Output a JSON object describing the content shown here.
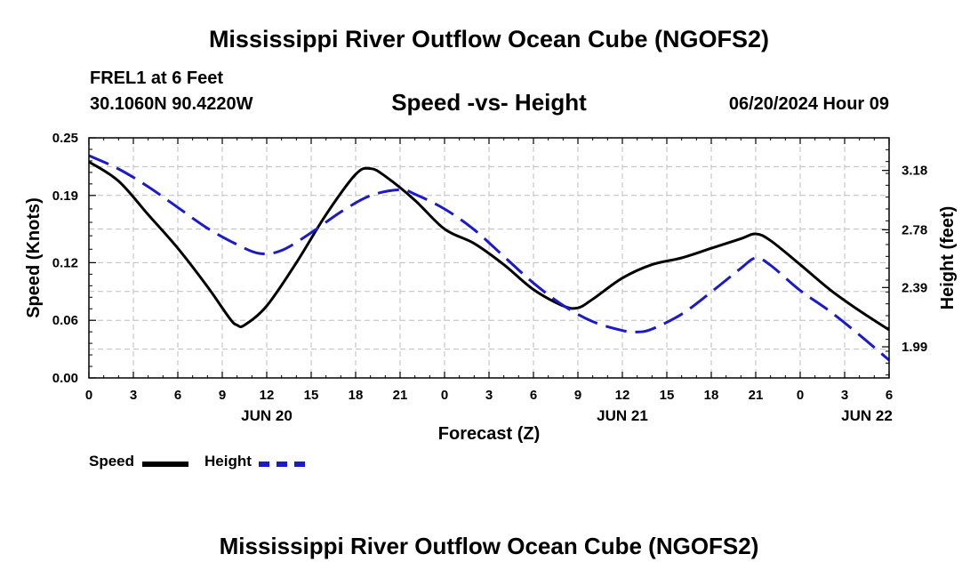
{
  "page": {
    "title_top": "Mississippi River Outflow Ocean Cube (NGOFS2)",
    "title_bottom": "Mississippi River Outflow Ocean Cube (NGOFS2)",
    "station": "FREL1 at 6 Feet",
    "coords": "30.1060N  90.4220W",
    "chart_title": "Speed -vs- Height",
    "date": "06/20/2024 Hour 09"
  },
  "legend": {
    "speed_label": "Speed",
    "height_label": "Height"
  },
  "colors": {
    "speed": "#000000",
    "height": "#1a1acc",
    "grid": "#bdbdbd"
  },
  "chart_data": {
    "type": "line",
    "title": "Speed -vs- Height",
    "xlabel": "Forecast (Z)",
    "ylabel": "Speed (Knots)",
    "y2label": "Height (feet)",
    "xlim": [
      0,
      54
    ],
    "ylim": [
      0,
      0.25
    ],
    "y2lim": [
      1.78,
      3.4
    ],
    "grid": true,
    "x_ticks": [
      0,
      3,
      6,
      9,
      12,
      15,
      18,
      21,
      24,
      27,
      30,
      33,
      36,
      39,
      42,
      45,
      48,
      51,
      54
    ],
    "x_tick_labels": [
      "0",
      "3",
      "6",
      "9",
      "12",
      "15",
      "18",
      "21",
      "0",
      "3",
      "6",
      "9",
      "12",
      "15",
      "18",
      "21",
      "0",
      "3",
      "6"
    ],
    "date_labels": [
      {
        "x": 12,
        "label": "JUN 20"
      },
      {
        "x": 36,
        "label": "JUN 21"
      },
      {
        "x": 52.5,
        "label": "JUN 22"
      }
    ],
    "y_ticks": [
      0.0,
      0.06,
      0.12,
      0.19,
      0.25
    ],
    "y_tick_labels": [
      "0.00",
      "0.06",
      "0.12",
      "0.19",
      "0.25"
    ],
    "y2_ticks": [
      1.99,
      2.39,
      2.78,
      3.18
    ],
    "y2_tick_labels": [
      "1.99",
      "2.39",
      "2.78",
      "3.18"
    ],
    "series": [
      {
        "name": "Speed",
        "axis": "left",
        "style": "solid",
        "points": [
          [
            0,
            0.225
          ],
          [
            2,
            0.205
          ],
          [
            4,
            0.17
          ],
          [
            6,
            0.135
          ],
          [
            8,
            0.095
          ],
          [
            9.5,
            0.062
          ],
          [
            10,
            0.055
          ],
          [
            10.5,
            0.055
          ],
          [
            12,
            0.075
          ],
          [
            14,
            0.12
          ],
          [
            16,
            0.17
          ],
          [
            18,
            0.212
          ],
          [
            19,
            0.218
          ],
          [
            20,
            0.21
          ],
          [
            22,
            0.185
          ],
          [
            24,
            0.155
          ],
          [
            26,
            0.14
          ],
          [
            28,
            0.118
          ],
          [
            30,
            0.092
          ],
          [
            32,
            0.075
          ],
          [
            33,
            0.073
          ],
          [
            34,
            0.082
          ],
          [
            36,
            0.104
          ],
          [
            38,
            0.118
          ],
          [
            40,
            0.125
          ],
          [
            42,
            0.135
          ],
          [
            44,
            0.145
          ],
          [
            45,
            0.15
          ],
          [
            46,
            0.143
          ],
          [
            48,
            0.118
          ],
          [
            50,
            0.092
          ],
          [
            52,
            0.07
          ],
          [
            54,
            0.05
          ]
        ]
      },
      {
        "name": "Height",
        "axis": "right",
        "style": "dashed",
        "points": [
          [
            0,
            3.28
          ],
          [
            2,
            3.19
          ],
          [
            4,
            3.07
          ],
          [
            6,
            2.93
          ],
          [
            8,
            2.79
          ],
          [
            10,
            2.68
          ],
          [
            11.5,
            2.62
          ],
          [
            13,
            2.64
          ],
          [
            15,
            2.76
          ],
          [
            17,
            2.9
          ],
          [
            19,
            3.01
          ],
          [
            21,
            3.05
          ],
          [
            22,
            3.02
          ],
          [
            24,
            2.92
          ],
          [
            26,
            2.78
          ],
          [
            28,
            2.6
          ],
          [
            30,
            2.42
          ],
          [
            32,
            2.27
          ],
          [
            34,
            2.16
          ],
          [
            36,
            2.1
          ],
          [
            37,
            2.09
          ],
          [
            38,
            2.11
          ],
          [
            40,
            2.21
          ],
          [
            42,
            2.36
          ],
          [
            44,
            2.52
          ],
          [
            45,
            2.59
          ],
          [
            46,
            2.54
          ],
          [
            48,
            2.37
          ],
          [
            50,
            2.23
          ],
          [
            52,
            2.07
          ],
          [
            54,
            1.9
          ]
        ]
      }
    ]
  }
}
